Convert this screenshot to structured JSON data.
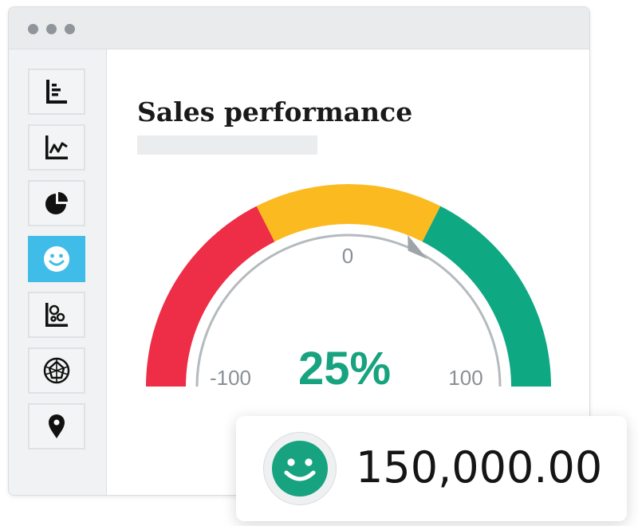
{
  "window": {
    "controls": [
      "window-dot",
      "window-dot",
      "window-dot"
    ]
  },
  "sidebar": {
    "items": [
      {
        "name": "bar-chart",
        "icon": "bar-chart-icon",
        "active": false
      },
      {
        "name": "line-chart",
        "icon": "line-chart-icon",
        "active": false
      },
      {
        "name": "pie-chart",
        "icon": "pie-chart-icon",
        "active": false
      },
      {
        "name": "gauge",
        "icon": "smiley-icon",
        "active": true
      },
      {
        "name": "bubble-chart",
        "icon": "bubble-chart-icon",
        "active": false
      },
      {
        "name": "radar-chart",
        "icon": "radar-chart-icon",
        "active": false
      },
      {
        "name": "map",
        "icon": "map-pin-icon",
        "active": false
      }
    ]
  },
  "main": {
    "title": "Sales performance"
  },
  "gauge": {
    "min_label": "-100",
    "mid_label": "0",
    "max_label": "100",
    "value_label": "25%",
    "value_percent": 25,
    "range": [
      -100,
      100
    ],
    "segments": [
      {
        "name": "low",
        "from": -100,
        "to": -30,
        "color": "#ee2d47"
      },
      {
        "name": "medium",
        "from": -30,
        "to": 30,
        "color": "#fbba1f"
      },
      {
        "name": "high",
        "from": 30,
        "to": 100,
        "color": "#0ea882"
      }
    ],
    "needle_color": "#9fa4a8"
  },
  "summary": {
    "value": "150,000.00",
    "icon": "smiley-icon",
    "icon_color": "#17a37f"
  },
  "colors": {
    "accent": "#3fbde8",
    "positive": "#17a37f"
  }
}
